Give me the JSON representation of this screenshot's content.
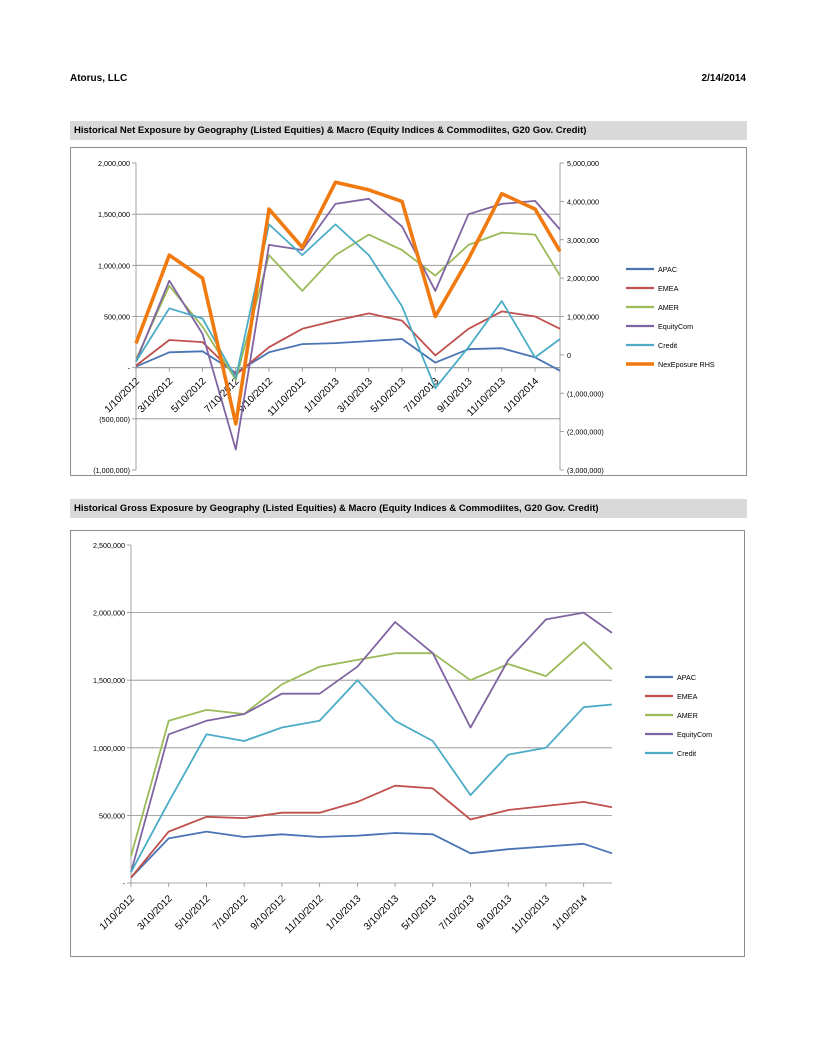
{
  "header": {
    "company": "Atorus, LLC",
    "date": "2/14/2014"
  },
  "dates": [
    "1/10/2012",
    "3/10/2012",
    "5/10/2012",
    "7/10/2012",
    "9/10/2012",
    "11/10/2012",
    "1/10/2013",
    "3/10/2013",
    "5/10/2013",
    "7/10/2013",
    "9/10/2013",
    "11/10/2013",
    "1/10/2014"
  ],
  "colors": {
    "APAC": "#4a74b4",
    "EMEA": "#c0504d",
    "AMER": "#9bbb59",
    "EquityCom": "#8064a2",
    "Credit": "#4bacc6",
    "NexEposure RHS": "#f07a10"
  },
  "chart_data": [
    {
      "type": "line",
      "title": "Historical Net Exposure by Geography (Listed Equities) & Macro (Equity Indices & Commodiites, G20 Gov. Credit)",
      "x": [
        0,
        2,
        4,
        6,
        8,
        10,
        12,
        14,
        16,
        18,
        20,
        22,
        24,
        25.5
      ],
      "x_tick_labels": [
        "1/10/2012",
        "3/10/2012",
        "5/10/2012",
        "7/10/2012",
        "9/10/2012",
        "11/10/2012",
        "1/10/2013",
        "3/10/2013",
        "5/10/2013",
        "7/10/2013",
        "9/10/2013",
        "11/10/2013",
        "1/10/2014"
      ],
      "ylim": [
        -1000000,
        2000000
      ],
      "y_ticks": [
        "2,000,000",
        "1,500,000",
        "1,000,000",
        "500,000",
        "-",
        "(500,000)",
        "(1,000,000)"
      ],
      "y2lim": [
        -3000000,
        5000000
      ],
      "y2_ticks": [
        "5,000,000",
        "4,000,000",
        "3,000,000",
        "2,000,000",
        "1,000,000",
        "0",
        "(1,000,000)",
        "(2,000,000)",
        "(3,000,000)"
      ],
      "legend_position": "right",
      "series": [
        {
          "name": "APAC",
          "values": [
            10000,
            150000,
            160000,
            -50000,
            150000,
            230000,
            240000,
            260000,
            280000,
            50000,
            180000,
            190000,
            100000,
            -30000
          ]
        },
        {
          "name": "EMEA",
          "values": [
            20000,
            270000,
            250000,
            -70000,
            200000,
            380000,
            460000,
            530000,
            460000,
            120000,
            380000,
            550000,
            500000,
            380000
          ]
        },
        {
          "name": "AMER",
          "values": [
            80000,
            800000,
            400000,
            -120000,
            1100000,
            750000,
            1100000,
            1300000,
            1150000,
            900000,
            1200000,
            1320000,
            1300000,
            900000
          ]
        },
        {
          "name": "EquityCom",
          "values": [
            60000,
            850000,
            330000,
            -800000,
            1200000,
            1150000,
            1600000,
            1650000,
            1380000,
            750000,
            1500000,
            1600000,
            1630000,
            1350000
          ]
        },
        {
          "name": "Credit",
          "values": [
            60000,
            580000,
            480000,
            -100000,
            1400000,
            1100000,
            1400000,
            1100000,
            600000,
            -200000,
            200000,
            650000,
            100000,
            280000
          ]
        },
        {
          "name": "NexEposure RHS",
          "axis": "right",
          "values": [
            300000,
            2600000,
            2000000,
            -1800000,
            3800000,
            2800000,
            4500000,
            4300000,
            4000000,
            1000000,
            2500000,
            4200000,
            3800000,
            2700000
          ]
        }
      ]
    },
    {
      "type": "line",
      "title": "Historical Gross Exposure by Geography (Listed Equities) & Macro (Equity Indices & Commodiites, G20 Gov. Credit)",
      "x": [
        0,
        2,
        4,
        6,
        8,
        10,
        12,
        14,
        16,
        18,
        20,
        22,
        24,
        25.5
      ],
      "x_tick_labels": [
        "1/10/2012",
        "3/10/2012",
        "5/10/2012",
        "7/10/2012",
        "9/10/2012",
        "11/10/2012",
        "1/10/2013",
        "3/10/2013",
        "5/10/2013",
        "7/10/2013",
        "9/10/2013",
        "11/10/2013",
        "1/10/2014"
      ],
      "ylim": [
        0,
        2500000
      ],
      "y_ticks": [
        "2,500,000",
        "2,000,000",
        "1,500,000",
        "1,000,000",
        "500,000",
        "-"
      ],
      "legend_position": "right",
      "series": [
        {
          "name": "APAC",
          "values": [
            40000,
            330000,
            380000,
            340000,
            360000,
            340000,
            350000,
            370000,
            360000,
            220000,
            250000,
            270000,
            290000,
            220000
          ]
        },
        {
          "name": "EMEA",
          "values": [
            40000,
            380000,
            490000,
            480000,
            520000,
            520000,
            600000,
            720000,
            700000,
            470000,
            540000,
            570000,
            600000,
            560000
          ]
        },
        {
          "name": "AMER",
          "values": [
            200000,
            1200000,
            1280000,
            1250000,
            1470000,
            1600000,
            1650000,
            1700000,
            1700000,
            1500000,
            1620000,
            1530000,
            1780000,
            1580000
          ]
        },
        {
          "name": "EquityCom",
          "values": [
            80000,
            1100000,
            1200000,
            1250000,
            1400000,
            1400000,
            1600000,
            1930000,
            1700000,
            1150000,
            1650000,
            1950000,
            2000000,
            1850000
          ]
        },
        {
          "name": "Credit",
          "values": [
            80000,
            600000,
            1100000,
            1050000,
            1150000,
            1200000,
            1500000,
            1200000,
            1050000,
            650000,
            950000,
            1000000,
            1300000,
            1320000
          ]
        }
      ]
    }
  ]
}
